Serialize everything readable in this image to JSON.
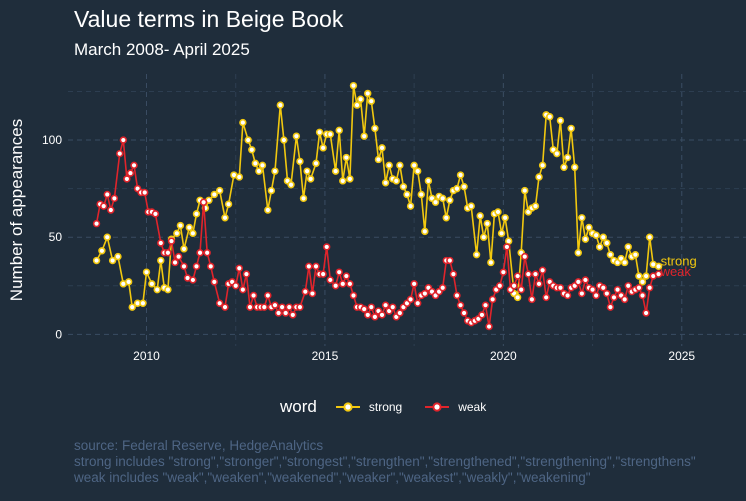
{
  "chart_data": {
    "type": "line",
    "title": "Value terms in Beige Book",
    "subtitle": "March 2008- April 2025",
    "ylabel": "Number of appearances",
    "xlabel": "",
    "x_ticks": [
      "2010",
      "2015",
      "2020",
      "2025"
    ],
    "y_ticks": [
      "0",
      "50",
      "100"
    ],
    "xlim": [
      2007.8,
      2026.8
    ],
    "ylim": [
      -6,
      134
    ],
    "legend_title": "word",
    "legend_position": "bottom",
    "grid": true,
    "series": [
      {
        "name": "strong",
        "color": "#f2c80f",
        "end_label": "strong",
        "points": [
          [
            2008.6,
            38
          ],
          [
            2008.75,
            43
          ],
          [
            2008.9,
            50
          ],
          [
            2009.05,
            38
          ],
          [
            2009.2,
            40
          ],
          [
            2009.35,
            26
          ],
          [
            2009.5,
            27
          ],
          [
            2009.6,
            14
          ],
          [
            2009.75,
            16
          ],
          [
            2009.9,
            16
          ],
          [
            2010.0,
            32
          ],
          [
            2010.15,
            26
          ],
          [
            2010.3,
            23
          ],
          [
            2010.4,
            38
          ],
          [
            2010.5,
            24
          ],
          [
            2010.6,
            23
          ],
          [
            2010.7,
            49
          ],
          [
            2010.85,
            52
          ],
          [
            2010.95,
            56
          ],
          [
            2011.05,
            44
          ],
          [
            2011.2,
            55
          ],
          [
            2011.3,
            52
          ],
          [
            2011.4,
            62
          ],
          [
            2011.5,
            69
          ],
          [
            2011.65,
            65
          ],
          [
            2011.75,
            69
          ],
          [
            2011.9,
            72
          ],
          [
            2012.05,
            74
          ],
          [
            2012.2,
            60
          ],
          [
            2012.3,
            67
          ],
          [
            2012.45,
            82
          ],
          [
            2012.6,
            81
          ],
          [
            2012.7,
            109
          ],
          [
            2012.85,
            100
          ],
          [
            2012.95,
            95
          ],
          [
            2013.05,
            88
          ],
          [
            2013.15,
            84
          ],
          [
            2013.25,
            87
          ],
          [
            2013.4,
            64
          ],
          [
            2013.5,
            74
          ],
          [
            2013.6,
            84
          ],
          [
            2013.75,
            118
          ],
          [
            2013.85,
            100
          ],
          [
            2013.95,
            79
          ],
          [
            2014.05,
            77
          ],
          [
            2014.2,
            102
          ],
          [
            2014.3,
            89
          ],
          [
            2014.4,
            70
          ],
          [
            2014.5,
            84
          ],
          [
            2014.6,
            80
          ],
          [
            2014.75,
            88
          ],
          [
            2014.85,
            104
          ],
          [
            2014.95,
            96
          ],
          [
            2015.05,
            103
          ],
          [
            2015.15,
            103
          ],
          [
            2015.3,
            84
          ],
          [
            2015.4,
            105
          ],
          [
            2015.5,
            79
          ],
          [
            2015.6,
            91
          ],
          [
            2015.7,
            80
          ],
          [
            2015.8,
            128
          ],
          [
            2015.9,
            118
          ],
          [
            2016.0,
            121
          ],
          [
            2016.1,
            102
          ],
          [
            2016.2,
            124
          ],
          [
            2016.3,
            120
          ],
          [
            2016.4,
            106
          ],
          [
            2016.5,
            90
          ],
          [
            2016.6,
            96
          ],
          [
            2016.7,
            78
          ],
          [
            2016.8,
            87
          ],
          [
            2016.9,
            80
          ],
          [
            2017.0,
            79
          ],
          [
            2017.1,
            87
          ],
          [
            2017.2,
            76
          ],
          [
            2017.3,
            72
          ],
          [
            2017.4,
            66
          ],
          [
            2017.5,
            87
          ],
          [
            2017.6,
            84
          ],
          [
            2017.7,
            72
          ],
          [
            2017.8,
            53
          ],
          [
            2017.9,
            79
          ],
          [
            2018.0,
            70
          ],
          [
            2018.1,
            68
          ],
          [
            2018.2,
            71
          ],
          [
            2018.3,
            70
          ],
          [
            2018.4,
            60
          ],
          [
            2018.5,
            69
          ],
          [
            2018.6,
            74
          ],
          [
            2018.7,
            75
          ],
          [
            2018.8,
            82
          ],
          [
            2018.9,
            76
          ],
          [
            2019.0,
            65
          ],
          [
            2019.1,
            66
          ],
          [
            2019.25,
            41
          ],
          [
            2019.35,
            61
          ],
          [
            2019.45,
            50
          ],
          [
            2019.55,
            57
          ],
          [
            2019.65,
            37
          ],
          [
            2019.75,
            62
          ],
          [
            2019.85,
            63
          ],
          [
            2019.95,
            52
          ],
          [
            2020.05,
            60
          ],
          [
            2020.15,
            48
          ],
          [
            2020.3,
            21
          ],
          [
            2020.4,
            19
          ],
          [
            2020.5,
            42
          ],
          [
            2020.6,
            74
          ],
          [
            2020.7,
            63
          ],
          [
            2020.8,
            65
          ],
          [
            2020.9,
            66
          ],
          [
            2021.0,
            81
          ],
          [
            2021.1,
            87
          ],
          [
            2021.2,
            113
          ],
          [
            2021.3,
            112
          ],
          [
            2021.4,
            95
          ],
          [
            2021.5,
            93
          ],
          [
            2021.6,
            110
          ],
          [
            2021.7,
            86
          ],
          [
            2021.8,
            91
          ],
          [
            2021.9,
            106
          ],
          [
            2022.0,
            86
          ],
          [
            2022.1,
            42
          ],
          [
            2022.2,
            60
          ],
          [
            2022.3,
            49
          ],
          [
            2022.4,
            55
          ],
          [
            2022.5,
            52
          ],
          [
            2022.6,
            51
          ],
          [
            2022.7,
            45
          ],
          [
            2022.8,
            50
          ],
          [
            2022.9,
            47
          ],
          [
            2023.0,
            41
          ],
          [
            2023.1,
            38
          ],
          [
            2023.2,
            37
          ],
          [
            2023.3,
            39
          ],
          [
            2023.4,
            37
          ],
          [
            2023.5,
            45
          ],
          [
            2023.6,
            40
          ],
          [
            2023.7,
            41
          ],
          [
            2023.8,
            30
          ],
          [
            2023.9,
            27
          ],
          [
            2024.0,
            30
          ],
          [
            2024.1,
            50
          ],
          [
            2024.2,
            36
          ],
          [
            2024.35,
            35
          ]
        ]
      },
      {
        "name": "weak",
        "color": "#e0242b",
        "end_label": "weak",
        "points": [
          [
            2008.6,
            57
          ],
          [
            2008.7,
            67
          ],
          [
            2008.8,
            66
          ],
          [
            2008.9,
            72
          ],
          [
            2009.0,
            64
          ],
          [
            2009.1,
            70
          ],
          [
            2009.25,
            93
          ],
          [
            2009.35,
            100
          ],
          [
            2009.45,
            80
          ],
          [
            2009.55,
            83
          ],
          [
            2009.65,
            87
          ],
          [
            2009.75,
            75
          ],
          [
            2009.85,
            73
          ],
          [
            2009.95,
            73
          ],
          [
            2010.05,
            63
          ],
          [
            2010.15,
            63
          ],
          [
            2010.25,
            62
          ],
          [
            2010.4,
            47
          ],
          [
            2010.5,
            42
          ],
          [
            2010.6,
            42
          ],
          [
            2010.7,
            48
          ],
          [
            2010.8,
            37
          ],
          [
            2010.9,
            40
          ],
          [
            2011.05,
            35
          ],
          [
            2011.15,
            29
          ],
          [
            2011.3,
            28
          ],
          [
            2011.4,
            35
          ],
          [
            2011.5,
            42
          ],
          [
            2011.6,
            68
          ],
          [
            2011.7,
            42
          ],
          [
            2011.8,
            35
          ],
          [
            2011.9,
            27
          ],
          [
            2012.05,
            16
          ],
          [
            2012.2,
            14
          ],
          [
            2012.3,
            26
          ],
          [
            2012.4,
            27
          ],
          [
            2012.5,
            25
          ],
          [
            2012.6,
            34
          ],
          [
            2012.7,
            23
          ],
          [
            2012.8,
            31
          ],
          [
            2012.9,
            14
          ],
          [
            2013.0,
            20
          ],
          [
            2013.1,
            14
          ],
          [
            2013.2,
            14
          ],
          [
            2013.3,
            14
          ],
          [
            2013.4,
            20
          ],
          [
            2013.5,
            14
          ],
          [
            2013.6,
            15
          ],
          [
            2013.7,
            11
          ],
          [
            2013.8,
            14
          ],
          [
            2013.9,
            11
          ],
          [
            2014.0,
            14
          ],
          [
            2014.1,
            10
          ],
          [
            2014.2,
            14
          ],
          [
            2014.3,
            14
          ],
          [
            2014.45,
            22
          ],
          [
            2014.55,
            35
          ],
          [
            2014.65,
            21
          ],
          [
            2014.75,
            35
          ],
          [
            2014.85,
            31
          ],
          [
            2014.95,
            31
          ],
          [
            2015.05,
            45
          ],
          [
            2015.15,
            28
          ],
          [
            2015.3,
            25
          ],
          [
            2015.4,
            32
          ],
          [
            2015.5,
            26
          ],
          [
            2015.6,
            30
          ],
          [
            2015.7,
            26
          ],
          [
            2015.8,
            20
          ],
          [
            2015.9,
            14
          ],
          [
            2016.0,
            14
          ],
          [
            2016.1,
            13
          ],
          [
            2016.2,
            10
          ],
          [
            2016.3,
            14
          ],
          [
            2016.4,
            9
          ],
          [
            2016.5,
            12
          ],
          [
            2016.6,
            10
          ],
          [
            2016.7,
            15
          ],
          [
            2016.8,
            12
          ],
          [
            2016.9,
            14
          ],
          [
            2017.0,
            9
          ],
          [
            2017.1,
            11
          ],
          [
            2017.2,
            14
          ],
          [
            2017.3,
            16
          ],
          [
            2017.4,
            18
          ],
          [
            2017.5,
            26
          ],
          [
            2017.6,
            16
          ],
          [
            2017.7,
            20
          ],
          [
            2017.8,
            21
          ],
          [
            2017.9,
            24
          ],
          [
            2018.0,
            22
          ],
          [
            2018.1,
            20
          ],
          [
            2018.2,
            22
          ],
          [
            2018.3,
            24
          ],
          [
            2018.4,
            38
          ],
          [
            2018.5,
            38
          ],
          [
            2018.6,
            31
          ],
          [
            2018.7,
            20
          ],
          [
            2018.8,
            15
          ],
          [
            2018.9,
            11
          ],
          [
            2019.0,
            7
          ],
          [
            2019.1,
            6
          ],
          [
            2019.2,
            7
          ],
          [
            2019.3,
            8
          ],
          [
            2019.4,
            10
          ],
          [
            2019.5,
            15
          ],
          [
            2019.6,
            4
          ],
          [
            2019.7,
            18
          ],
          [
            2019.8,
            23
          ],
          [
            2019.9,
            25
          ],
          [
            2020.0,
            32
          ],
          [
            2020.1,
            45
          ],
          [
            2020.2,
            23
          ],
          [
            2020.3,
            25
          ],
          [
            2020.4,
            30
          ],
          [
            2020.5,
            23
          ],
          [
            2020.6,
            40
          ],
          [
            2020.7,
            31
          ],
          [
            2020.8,
            18
          ],
          [
            2020.9,
            31
          ],
          [
            2021.0,
            26
          ],
          [
            2021.1,
            33
          ],
          [
            2021.2,
            19
          ],
          [
            2021.3,
            27
          ],
          [
            2021.4,
            25
          ],
          [
            2021.5,
            24
          ],
          [
            2021.6,
            24
          ],
          [
            2021.7,
            21
          ],
          [
            2021.8,
            20
          ],
          [
            2021.9,
            24
          ],
          [
            2022.0,
            25
          ],
          [
            2022.1,
            27
          ],
          [
            2022.2,
            21
          ],
          [
            2022.3,
            28
          ],
          [
            2022.4,
            24
          ],
          [
            2022.5,
            23
          ],
          [
            2022.6,
            20
          ],
          [
            2022.7,
            25
          ],
          [
            2022.8,
            24
          ],
          [
            2022.9,
            21
          ],
          [
            2023.0,
            14
          ],
          [
            2023.1,
            19
          ],
          [
            2023.2,
            23
          ],
          [
            2023.3,
            20
          ],
          [
            2023.4,
            18
          ],
          [
            2023.5,
            25
          ],
          [
            2023.6,
            22
          ],
          [
            2023.7,
            23
          ],
          [
            2023.8,
            24
          ],
          [
            2023.9,
            20
          ],
          [
            2024.0,
            11
          ],
          [
            2024.1,
            24
          ],
          [
            2024.2,
            30
          ],
          [
            2024.35,
            31
          ]
        ]
      }
    ]
  },
  "caption": {
    "source": "source: Federal Reserve, HedgeAnalytics",
    "strong_includes": "strong includes \"strong\",\"stronger\",\"strongest\",\"strengthen\",\"strengthened\",\"strengthening\",\"strengthens\"",
    "weak_includes": "weak includes  \"weak\",\"weaken\",\"weakened\",\"weaker\",\"weakest\",\"weakly\",\"weakening\""
  }
}
